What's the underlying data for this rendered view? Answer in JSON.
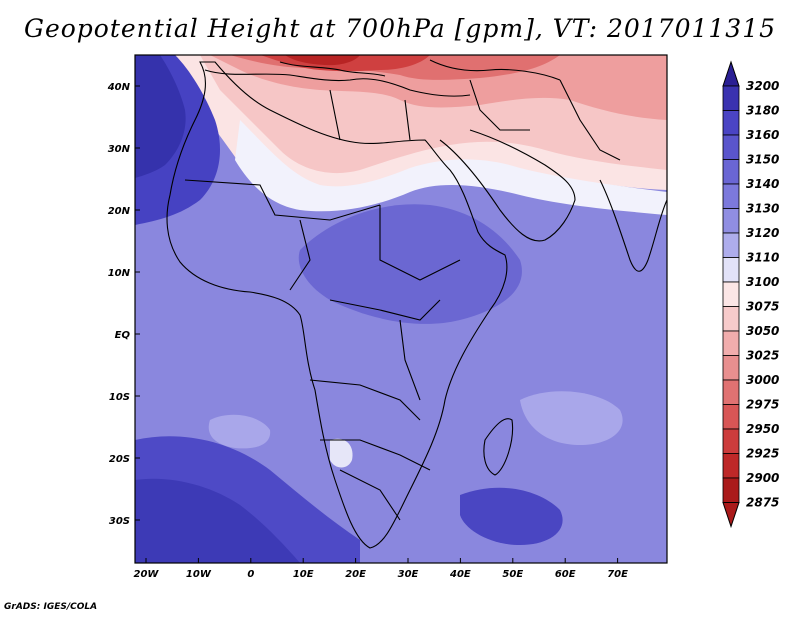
{
  "title": "Geopotential Height at 700hPa [gpm], VT: 2017011315",
  "credit": "GrADS: IGES/COLA",
  "lon_ticks": [
    "20W",
    "10W",
    "0",
    "10E",
    "20E",
    "30E",
    "40E",
    "50E",
    "60E",
    "70E"
  ],
  "lat_ticks": [
    "40N",
    "30N",
    "20N",
    "10N",
    "EQ",
    "10S",
    "20S",
    "30S"
  ],
  "legend": {
    "labels": [
      "3200",
      "3180",
      "3160",
      "3150",
      "3140",
      "3130",
      "3120",
      "3110",
      "3100",
      "3075",
      "3050",
      "3025",
      "3000",
      "2975",
      "2950",
      "2925",
      "2900",
      "2875"
    ],
    "colors": [
      "#2a1f94",
      "#3a32b0",
      "#4a44c4",
      "#5a55cc",
      "#6a66d4",
      "#7c79dc",
      "#908ee2",
      "#aeadec",
      "#e2e2f8",
      "#fbe6e6",
      "#f7cbcb",
      "#f1adad",
      "#e88f8f",
      "#e07272",
      "#d85656",
      "#cc3c3c",
      "#be2828",
      "#aa1a1a"
    ]
  }
}
